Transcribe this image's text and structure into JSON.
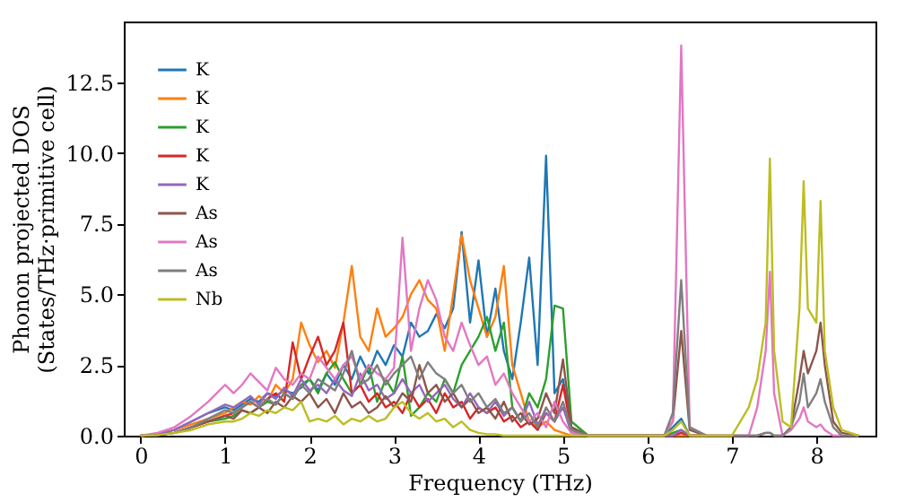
{
  "chart_data": {
    "type": "line",
    "xlabel": "Frequency (THz)",
    "ylabel": "Phonon projected DOS\n(States/THz·primitive cell)",
    "x": [
      0,
      0.2,
      0.4,
      0.6,
      0.8,
      1.0,
      1.1,
      1.2,
      1.3,
      1.4,
      1.5,
      1.6,
      1.7,
      1.8,
      1.9,
      2.0,
      2.1,
      2.2,
      2.3,
      2.4,
      2.5,
      2.6,
      2.7,
      2.8,
      2.9,
      3.0,
      3.1,
      3.2,
      3.3,
      3.4,
      3.5,
      3.6,
      3.7,
      3.8,
      3.9,
      4.0,
      4.1,
      4.2,
      4.3,
      4.4,
      4.5,
      4.6,
      4.7,
      4.8,
      4.9,
      5.0,
      5.1,
      5.3,
      6.2,
      6.3,
      6.4,
      6.5,
      6.7,
      7.0,
      7.2,
      7.3,
      7.4,
      7.45,
      7.5,
      7.6,
      7.7,
      7.8,
      7.85,
      7.9,
      8.0,
      8.05,
      8.1,
      8.2,
      8.3,
      8.5
    ],
    "series": [
      {
        "name": "K",
        "color": "#1f77b4",
        "values": [
          null,
          null,
          0.2,
          0.5,
          0.8,
          1.0,
          0.9,
          1.1,
          1.3,
          1.2,
          1.5,
          1.4,
          1.6,
          1.5,
          1.7,
          2.0,
          1.6,
          2.2,
          1.8,
          2.5,
          2.0,
          2.8,
          2.2,
          3.0,
          2.5,
          3.2,
          2.8,
          4.0,
          3.5,
          3.7,
          4.3,
          3.8,
          4.5,
          7.2,
          4.0,
          6.2,
          3.5,
          5.2,
          3.0,
          2.0,
          4.0,
          6.3,
          2.5,
          9.9,
          1.5,
          2.0,
          0.3,
          0,
          0,
          0.3,
          0.6,
          0,
          0,
          null,
          null,
          null,
          null,
          null,
          null,
          null,
          null,
          null,
          null,
          null,
          null,
          null,
          null,
          null,
          null,
          null
        ]
      },
      {
        "name": "K",
        "color": "#ff7f0e",
        "values": [
          0,
          0.05,
          0.2,
          0.4,
          0.6,
          0.8,
          1.0,
          1.2,
          1.1,
          1.4,
          1.2,
          1.8,
          1.5,
          2.0,
          4.0,
          3.2,
          2.6,
          3.0,
          2.4,
          4.0,
          6.0,
          3.5,
          3.0,
          4.5,
          3.5,
          3.8,
          4.2,
          5.0,
          5.5,
          4.8,
          4.5,
          3.0,
          5.0,
          7.1,
          5.5,
          4.5,
          3.5,
          4.2,
          6.0,
          2.5,
          1.5,
          0.5,
          0.3,
          0.5,
          0.2,
          0.1,
          0,
          0,
          0,
          0,
          0,
          0,
          0,
          null,
          null,
          null,
          null,
          null,
          null,
          null,
          null,
          null,
          null,
          null,
          null,
          null,
          null,
          null,
          null,
          null
        ]
      },
      {
        "name": "K",
        "color": "#2ca02c",
        "values": [
          null,
          null,
          0.1,
          0.3,
          0.5,
          0.6,
          0.7,
          0.9,
          0.8,
          1.0,
          1.2,
          1.1,
          1.5,
          1.3,
          1.8,
          2.0,
          1.5,
          2.2,
          2.6,
          2.0,
          1.5,
          1.8,
          2.5,
          1.2,
          2.0,
          1.5,
          2.8,
          0.7,
          1.0,
          1.5,
          1.2,
          2.0,
          1.5,
          2.5,
          3.0,
          3.5,
          4.2,
          3.0,
          4.0,
          1.0,
          0.5,
          1.5,
          1.0,
          2.0,
          4.6,
          4.5,
          0.5,
          0,
          0,
          0.1,
          0.2,
          0,
          0,
          null,
          null,
          null,
          null,
          null,
          null,
          null,
          null,
          null,
          null,
          null,
          null,
          null,
          null,
          null,
          null,
          null
        ]
      },
      {
        "name": "K",
        "color": "#d62728",
        "values": [
          0,
          0.02,
          0.1,
          0.3,
          0.5,
          0.7,
          0.8,
          1.0,
          1.2,
          1.0,
          1.3,
          1.5,
          1.2,
          3.3,
          2.0,
          2.8,
          3.5,
          2.5,
          3.0,
          4.0,
          1.5,
          1.8,
          1.2,
          1.5,
          1.0,
          1.2,
          0.8,
          1.5,
          1.0,
          1.3,
          0.8,
          1.5,
          1.0,
          1.2,
          0.6,
          1.0,
          0.8,
          1.0,
          0.5,
          0.7,
          0.3,
          0.5,
          0.2,
          0.8,
          0.5,
          1.8,
          0.2,
          0,
          0,
          0,
          0.1,
          0,
          0,
          null,
          null,
          null,
          null,
          null,
          null,
          null,
          null,
          null,
          null,
          null,
          null,
          null,
          null,
          null,
          null,
          null
        ]
      },
      {
        "name": "K",
        "color": "#9467bd",
        "values": [
          0,
          0.05,
          0.2,
          0.5,
          0.8,
          1.1,
          1.0,
          1.2,
          1.4,
          1.1,
          1.5,
          1.3,
          1.7,
          1.4,
          2.0,
          1.6,
          1.8,
          1.5,
          2.0,
          1.6,
          1.4,
          2.2,
          1.6,
          1.8,
          1.3,
          1.5,
          2.0,
          1.5,
          1.8,
          1.2,
          1.5,
          1.8,
          1.3,
          1.0,
          1.5,
          1.0,
          0.8,
          1.2,
          0.7,
          1.0,
          0.5,
          1.2,
          0.4,
          0.8,
          0.5,
          1.0,
          0.1,
          0,
          0,
          0,
          0.2,
          0,
          0,
          null,
          null,
          null,
          null,
          null,
          null,
          null,
          null,
          null,
          null,
          null,
          null,
          null,
          null,
          null,
          null,
          null
        ]
      },
      {
        "name": "As",
        "color": "#8c564b",
        "values": [
          0,
          0.02,
          0.1,
          0.3,
          0.5,
          0.7,
          0.6,
          0.9,
          0.8,
          1.0,
          0.8,
          1.2,
          1.0,
          1.4,
          1.2,
          1.5,
          1.0,
          1.3,
          0.8,
          1.5,
          1.0,
          1.2,
          0.8,
          1.0,
          1.4,
          1.0,
          1.5,
          1.2,
          2.5,
          1.5,
          1.8,
          1.2,
          1.5,
          1.0,
          1.3,
          0.8,
          1.0,
          0.6,
          1.2,
          0.5,
          0.8,
          0.4,
          0.6,
          1.5,
          0.8,
          2.7,
          0.3,
          0,
          0,
          0.5,
          3.7,
          0.2,
          0,
          0,
          0,
          0,
          0.1,
          0.1,
          0,
          0,
          0.3,
          2.0,
          3.0,
          2.2,
          3.0,
          4.0,
          2.5,
          0.5,
          0.1,
          0
        ]
      },
      {
        "name": "As",
        "color": "#e377c2",
        "values": [
          0,
          0.1,
          0.3,
          0.7,
          1.2,
          1.8,
          1.5,
          1.8,
          2.2,
          1.9,
          1.6,
          2.4,
          2.0,
          1.8,
          2.2,
          2.0,
          2.8,
          2.4,
          2.0,
          2.5,
          2.8,
          2.0,
          2.5,
          2.2,
          2.0,
          2.4,
          7.0,
          3.0,
          4.5,
          5.5,
          4.8,
          3.5,
          3.0,
          4.0,
          3.2,
          2.5,
          2.8,
          1.8,
          2.2,
          1.5,
          1.0,
          0.5,
          0.8,
          0.3,
          1.2,
          0.5,
          0.1,
          0,
          0,
          0.5,
          13.8,
          0.3,
          0,
          0,
          0,
          1.0,
          3.0,
          5.8,
          1.5,
          0,
          0.2,
          0.6,
          1.0,
          0.5,
          0.3,
          0.4,
          0.2,
          0,
          0,
          0
        ]
      },
      {
        "name": "As",
        "color": "#7f7f7f",
        "values": [
          0,
          0.02,
          0.1,
          0.3,
          0.6,
          0.9,
          0.8,
          1.0,
          1.2,
          1.0,
          1.3,
          1.1,
          1.5,
          1.3,
          1.8,
          1.5,
          2.0,
          1.8,
          1.6,
          2.2,
          3.0,
          1.8,
          2.0,
          2.5,
          1.8,
          2.2,
          2.5,
          2.8,
          2.0,
          2.6,
          2.2,
          2.0,
          1.5,
          1.8,
          1.2,
          1.5,
          1.0,
          1.3,
          0.8,
          1.0,
          0.5,
          0.8,
          0.3,
          1.0,
          0.5,
          1.2,
          0.2,
          0,
          0,
          0.8,
          5.5,
          0.3,
          0,
          0,
          0,
          0,
          0.1,
          0.1,
          0,
          0,
          0.3,
          1.2,
          2.2,
          1.0,
          1.5,
          2.0,
          1.2,
          0.3,
          0,
          0
        ]
      },
      {
        "name": "Nb",
        "color": "#bcbd22",
        "values": [
          0,
          0.02,
          0.1,
          0.2,
          0.4,
          0.5,
          0.5,
          0.6,
          0.8,
          0.7,
          0.9,
          0.8,
          1.0,
          0.9,
          1.2,
          0.5,
          0.6,
          0.5,
          0.7,
          0.4,
          0.6,
          0.5,
          0.7,
          0.5,
          0.6,
          1.0,
          1.2,
          0.8,
          0.6,
          0.8,
          0.5,
          0.6,
          0.3,
          0.5,
          0.2,
          0.1,
          0.05,
          0.05,
          0,
          0,
          0,
          0,
          0,
          0,
          0,
          0,
          0,
          0,
          0,
          0.2,
          0.5,
          0,
          0,
          0,
          1.0,
          2.0,
          4.0,
          9.8,
          3.0,
          0.5,
          0.3,
          4.5,
          9.0,
          4.5,
          4.0,
          8.3,
          3.0,
          1.0,
          0.2,
          0
        ]
      }
    ],
    "xlim": [
      -0.2,
      8.7
    ],
    "xticks": [
      0,
      1,
      2,
      3,
      4,
      5,
      6,
      7,
      8
    ],
    "ylim": [
      0,
      14.65
    ],
    "yticks": [
      {
        "value": 0,
        "label": "0.0"
      },
      {
        "value": 2.5,
        "label": "2.5"
      },
      {
        "value": 5,
        "label": "5.0"
      },
      {
        "value": 7.5,
        "label": "7.5"
      },
      {
        "value": 10,
        "label": "10.0"
      },
      {
        "value": 12.5,
        "label": "12.5"
      }
    ],
    "legend": "top left",
    "grid": false
  }
}
